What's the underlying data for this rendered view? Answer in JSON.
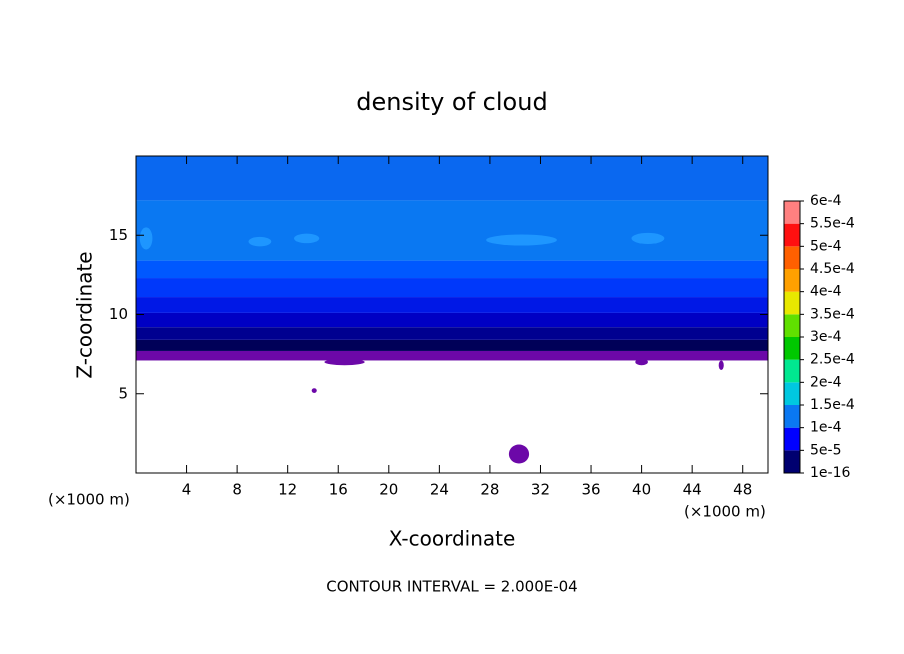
{
  "chart_data": {
    "type": "contour",
    "title": "density of cloud",
    "x_label": "X-coordinate",
    "y_label": "Z-coordinate",
    "x_unit_left": "(×1000 m)",
    "x_unit_right": "(×1000 m)",
    "footnote": "CONTOUR INTERVAL = 2.000E-04",
    "xlim": [
      0,
      50
    ],
    "ylim": [
      0,
      20
    ],
    "xticks": [
      4,
      8,
      12,
      16,
      20,
      24,
      28,
      32,
      36,
      40,
      44,
      48
    ],
    "yticks": [
      5,
      10,
      15
    ],
    "bands": [
      {
        "range": [
          7.1,
          7.7
        ],
        "color": "#6c08a8"
      },
      {
        "range": [
          7.7,
          8.4
        ],
        "color": "#000058"
      },
      {
        "range": [
          8.4,
          9.2
        ],
        "color": "#000090"
      },
      {
        "range": [
          9.2,
          10.1
        ],
        "color": "#0000c4"
      },
      {
        "range": [
          10.1,
          11.1
        ],
        "color": "#0018e6"
      },
      {
        "range": [
          11.1,
          12.3
        ],
        "color": "#0038fa"
      },
      {
        "range": [
          12.3,
          13.4
        ],
        "color": "#0058ff"
      },
      {
        "range": [
          13.4,
          17.2
        ],
        "color": "#0a78f2"
      },
      {
        "range": [
          17.2,
          20
        ],
        "color": "#0a68f0"
      }
    ],
    "patches": [
      {
        "x": 16.5,
        "z": 7.0,
        "rx": 1.6,
        "rz": 0.2,
        "color": "#6c08a8"
      },
      {
        "x": 40,
        "z": 7.0,
        "rx": 0.5,
        "rz": 0.2,
        "color": "#6c08a8"
      },
      {
        "x": 46.3,
        "z": 6.8,
        "rx": 0.2,
        "rz": 0.3,
        "color": "#6c08a8"
      },
      {
        "x": 14.1,
        "z": 5.2,
        "rx": 0.2,
        "rz": 0.15,
        "color": "#6c08a8"
      },
      {
        "x": 30.3,
        "z": 1.2,
        "rx": 0.8,
        "rz": 0.6,
        "color": "#6c08a8"
      },
      {
        "x": 9.8,
        "z": 14.6,
        "rx": 0.9,
        "rz": 0.3,
        "color": "#1e96ff"
      },
      {
        "x": 13.5,
        "z": 14.8,
        "rx": 1.0,
        "rz": 0.3,
        "color": "#1e96ff"
      },
      {
        "x": 30.5,
        "z": 14.7,
        "rx": 2.8,
        "rz": 0.35,
        "color": "#1e96ff"
      },
      {
        "x": 40.5,
        "z": 14.8,
        "rx": 1.3,
        "rz": 0.35,
        "color": "#1e96ff"
      },
      {
        "x": 0.8,
        "z": 14.8,
        "rx": 0.5,
        "rz": 0.7,
        "color": "#1e96ff"
      }
    ],
    "colorbar": {
      "ticks": [
        {
          "value": 1e-16,
          "label": "1e-16"
        },
        {
          "value": 5e-05,
          "label": "5e-5"
        },
        {
          "value": 0.0001,
          "label": "1e-4"
        },
        {
          "value": 0.00015,
          "label": "1.5e-4"
        },
        {
          "value": 0.0002,
          "label": "2e-4"
        },
        {
          "value": 0.00025,
          "label": "2.5e-4"
        },
        {
          "value": 0.0003,
          "label": "3e-4"
        },
        {
          "value": 0.00035,
          "label": "3.5e-4"
        },
        {
          "value": 0.0004,
          "label": "4e-4"
        },
        {
          "value": 0.00045,
          "label": "4.5e-4"
        },
        {
          "value": 0.0005,
          "label": "5e-4"
        },
        {
          "value": 0.00055,
          "label": "5.5e-4"
        },
        {
          "value": 0.0006,
          "label": "6e-4"
        }
      ],
      "colors": [
        "#7000a8",
        "#000070",
        "#0000ff",
        "#0a78f2",
        "#00c8e0",
        "#00e890",
        "#00c800",
        "#60e000",
        "#e8e800",
        "#ffa000",
        "#ff6000",
        "#ff1010",
        "#ff8080"
      ]
    }
  }
}
